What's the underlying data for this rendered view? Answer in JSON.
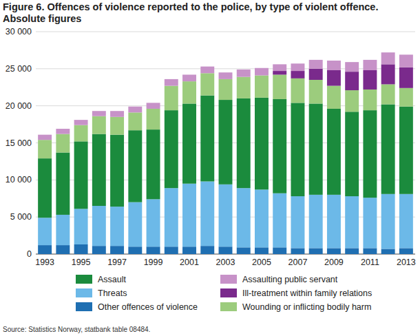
{
  "chart_data": {
    "type": "bar",
    "title": "Figure 6. Offences of violence reported to the police, by type of violent offence. Absolute figures",
    "source": "Source: Statistics Norway, statbank table 08484.",
    "stacked": true,
    "grid": true,
    "legend": "bottom",
    "categories": [
      "1993",
      null,
      "1995",
      null,
      "1997",
      null,
      "1999",
      null,
      "2001",
      null,
      "2003",
      null,
      "2005",
      null,
      "2007",
      null,
      "2009",
      null,
      "2011",
      null,
      "2013"
    ],
    "ylim": [
      0,
      30000
    ],
    "yticks": [
      0,
      {
        "value": 5000,
        "label": "5 000"
      },
      {
        "value": 10000,
        "label": "10 000"
      },
      {
        "value": 15000,
        "label": "15 000"
      },
      {
        "value": 20000,
        "label": "20 000"
      },
      {
        "value": 25000,
        "label": "25 000"
      },
      {
        "value": 30000,
        "label": "30 000"
      }
    ],
    "series": [
      {
        "name": "Other offences of violence",
        "color": "#1f6fb2",
        "values": [
          1200,
          1200,
          1300,
          1100,
          1100,
          1000,
          1000,
          1000,
          1000,
          1100,
          1000,
          900,
          900,
          900,
          800,
          800,
          800,
          800,
          800,
          700,
          800
        ]
      },
      {
        "name": "Threats",
        "color": "#6cb9e8",
        "values": [
          3700,
          4100,
          4800,
          5400,
          5300,
          6000,
          6400,
          7900,
          8500,
          8700,
          8400,
          8000,
          7800,
          7300,
          7000,
          7200,
          7200,
          7000,
          6800,
          7400,
          7300
        ]
      },
      {
        "name": "Assault",
        "color": "#1b8b3d",
        "values": [
          8000,
          8400,
          9100,
          9700,
          9700,
          9700,
          9400,
          10500,
          10800,
          11600,
          11400,
          12100,
          12400,
          12700,
          12600,
          12300,
          11600,
          11400,
          11800,
          12100,
          11800
        ]
      },
      {
        "name": "Wounding or inflicting bodily harm",
        "color": "#9ccc7d",
        "values": [
          2500,
          2500,
          2200,
          2400,
          2400,
          2400,
          2800,
          3300,
          3000,
          3000,
          2800,
          2900,
          3000,
          3300,
          3300,
          3200,
          3100,
          2900,
          2800,
          2700,
          2500
        ]
      },
      {
        "name": "Ill-treatment within family relations",
        "color": "#7a2a8c",
        "values": [
          null,
          null,
          null,
          null,
          null,
          null,
          null,
          null,
          null,
          null,
          null,
          null,
          null,
          500,
          1000,
          1500,
          2100,
          2500,
          2600,
          2700,
          2800
        ]
      },
      {
        "name": "Assaulting public servant",
        "color": "#c792c8",
        "values": [
          700,
          700,
          700,
          700,
          800,
          800,
          800,
          900,
          900,
          900,
          900,
          1000,
          1000,
          900,
          1000,
          1200,
          1300,
          1300,
          1400,
          1600,
          1700
        ]
      }
    ]
  }
}
